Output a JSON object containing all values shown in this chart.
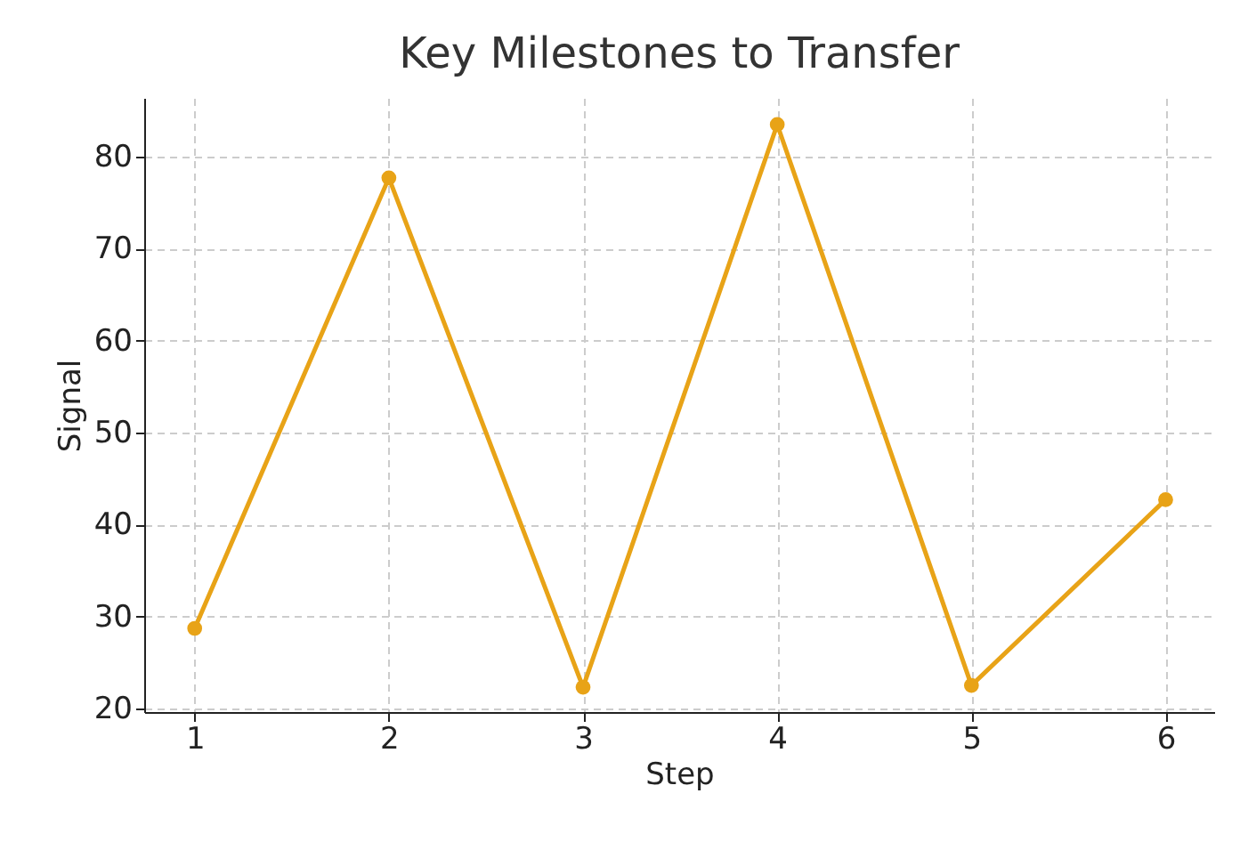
{
  "chart_data": {
    "type": "line",
    "title": "Key Milestones to Transfer",
    "xlabel": "Step",
    "ylabel": "Signal",
    "x": [
      1,
      2,
      3,
      4,
      5,
      6
    ],
    "series": [
      {
        "color": "#e8a317",
        "values": [
          28.7,
          77.7,
          22.3,
          83.5,
          22.5,
          42.7
        ]
      }
    ],
    "xlim": [
      0.74,
      6.25
    ],
    "xticks": [
      1,
      2,
      3,
      4,
      5,
      6
    ],
    "ylim": [
      19.6,
      86.4
    ],
    "yticks": [
      20,
      30,
      40,
      50,
      60,
      70,
      80
    ],
    "grid": true,
    "marker": "circle",
    "line_style": "solid"
  }
}
